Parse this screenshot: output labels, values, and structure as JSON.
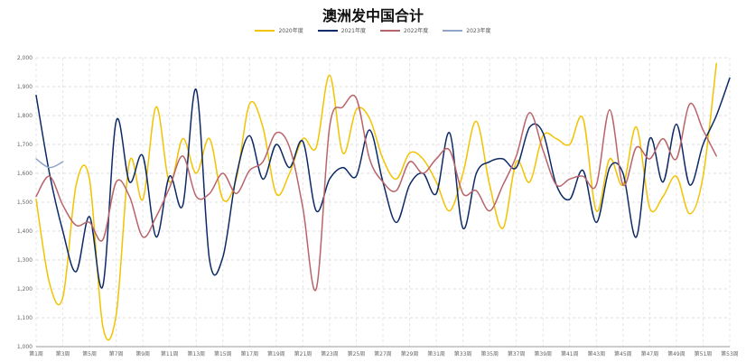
{
  "chart_data": {
    "type": "line",
    "title": "澳洲发中国合计",
    "xlabel": "",
    "ylabel": "",
    "ylim": [
      1000,
      2000
    ],
    "yticks": [
      1000,
      1100,
      1200,
      1300,
      1400,
      1500,
      1600,
      1700,
      1800,
      1900,
      2000
    ],
    "ytick_labels": [
      "1,000",
      "1,100",
      "1,200",
      "1,300",
      "1,400",
      "1,500",
      "1,600",
      "1,700",
      "1,800",
      "1,900",
      "2,000"
    ],
    "grid": true,
    "legend_position": "top",
    "x_weeks": [
      1,
      2,
      3,
      4,
      5,
      6,
      7,
      8,
      9,
      10,
      11,
      12,
      13,
      14,
      15,
      16,
      17,
      18,
      19,
      20,
      21,
      22,
      23,
      24,
      25,
      26,
      27,
      28,
      29,
      30,
      31,
      32,
      33,
      34,
      35,
      36,
      37,
      38,
      39,
      40,
      41,
      42,
      43,
      44,
      45,
      46,
      47,
      48,
      49,
      50,
      51,
      52,
      53
    ],
    "xtick_weeks": [
      1,
      3,
      5,
      7,
      9,
      11,
      13,
      15,
      17,
      19,
      21,
      23,
      25,
      27,
      29,
      31,
      33,
      35,
      37,
      39,
      41,
      43,
      45,
      47,
      49,
      51,
      53
    ],
    "xtick_labels": [
      "第1周",
      "第3周",
      "第5周",
      "第7周",
      "第9周",
      "第11周",
      "第13周",
      "第15周",
      "第17周",
      "第19周",
      "第21周",
      "第23周",
      "第25周",
      "第27周",
      "第29周",
      "第31周",
      "第33周",
      "第35周",
      "第37周",
      "第39周",
      "第41周",
      "第43周",
      "第45周",
      "第47周",
      "第49周",
      "第51周",
      "第53周"
    ],
    "series": [
      {
        "name": "2020年度",
        "color": "#f2c300",
        "values": [
          1510,
          1220,
          1170,
          1560,
          1580,
          1070,
          1110,
          1640,
          1510,
          1830,
          1570,
          1720,
          1600,
          1720,
          1510,
          1580,
          1840,
          1760,
          1530,
          1600,
          1720,
          1690,
          1940,
          1670,
          1820,
          1790,
          1650,
          1580,
          1670,
          1650,
          1570,
          1470,
          1600,
          1780,
          1560,
          1410,
          1640,
          1570,
          1730,
          1720,
          1700,
          1790,
          1470,
          1650,
          1560,
          1760,
          1480,
          1520,
          1590,
          1460,
          1590,
          1980,
          null
        ]
      },
      {
        "name": "2021年度",
        "color": "#0d2a66",
        "values": [
          1870,
          1600,
          1400,
          1260,
          1450,
          1210,
          1780,
          1570,
          1660,
          1380,
          1590,
          1490,
          1890,
          1300,
          1310,
          1590,
          1730,
          1580,
          1700,
          1620,
          1710,
          1470,
          1580,
          1620,
          1590,
          1750,
          1570,
          1430,
          1560,
          1600,
          1530,
          1740,
          1410,
          1600,
          1640,
          1650,
          1620,
          1760,
          1740,
          1560,
          1510,
          1610,
          1430,
          1620,
          1600,
          1380,
          1720,
          1570,
          1770,
          1560,
          1700,
          1800,
          1930
        ]
      },
      {
        "name": "2022年度",
        "color": "#b9646a",
        "values": [
          1520,
          1590,
          1490,
          1420,
          1430,
          1370,
          1570,
          1520,
          1380,
          1450,
          1550,
          1660,
          1520,
          1530,
          1600,
          1530,
          1610,
          1640,
          1740,
          1690,
          1480,
          1200,
          1760,
          1830,
          1860,
          1650,
          1570,
          1540,
          1640,
          1600,
          1650,
          1680,
          1530,
          1540,
          1470,
          1560,
          1660,
          1810,
          1680,
          1560,
          1580,
          1590,
          1560,
          1820,
          1560,
          1690,
          1650,
          1720,
          1650,
          1840,
          1750,
          1660,
          null
        ]
      },
      {
        "name": "2023年度",
        "color": "#8fa4c8",
        "values": [
          1650,
          1620,
          1640,
          null,
          null,
          null,
          null,
          null,
          null,
          null,
          null,
          null,
          null,
          null,
          null,
          null,
          null,
          null,
          null,
          null,
          null,
          null,
          null,
          null,
          null,
          null,
          null,
          null,
          null,
          null,
          null,
          null,
          null,
          null,
          null,
          null,
          null,
          null,
          null,
          null,
          null,
          null,
          null,
          null,
          null,
          null,
          null,
          null,
          null,
          null,
          null,
          null,
          null
        ]
      }
    ]
  }
}
